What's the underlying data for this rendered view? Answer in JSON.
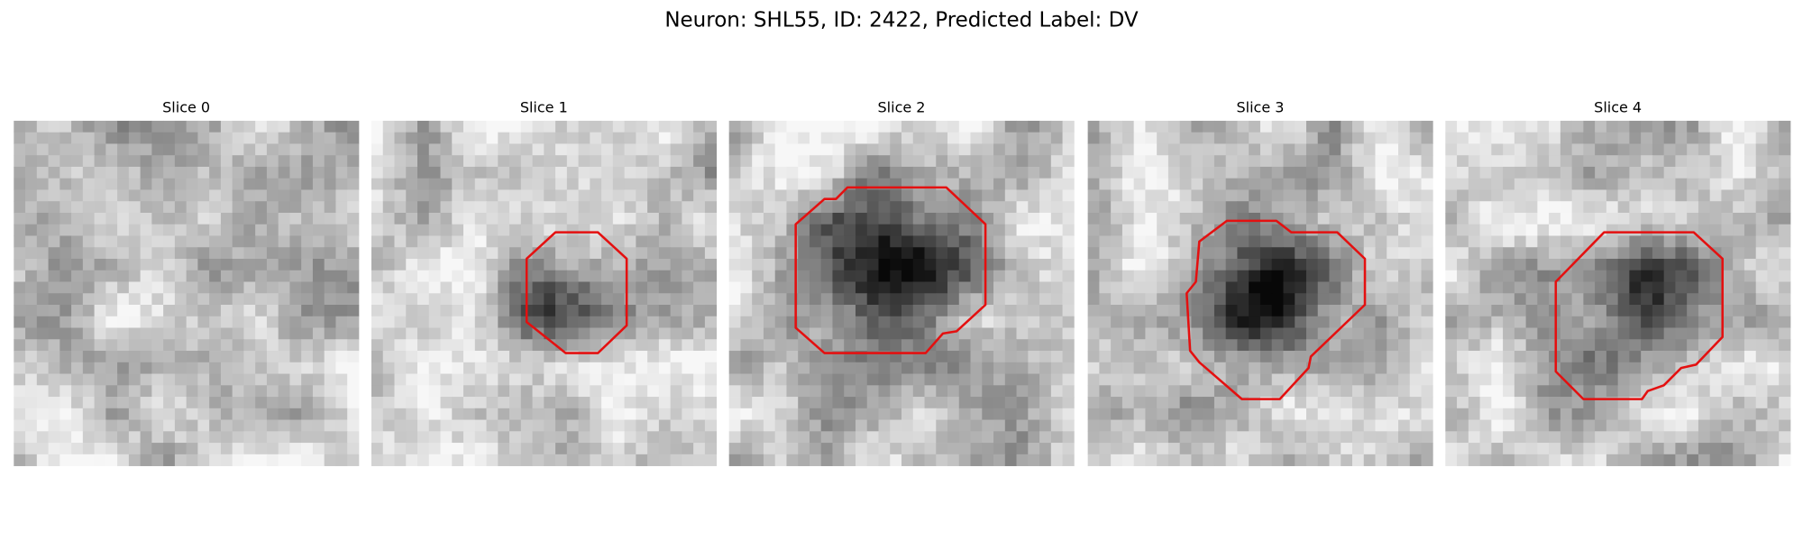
{
  "title": "Neuron: SHL55, ID: 2422, Predicted Label: DV",
  "panels": [
    {
      "title": "Slice 0"
    },
    {
      "title": "Slice 1"
    },
    {
      "title": "Slice 2"
    },
    {
      "title": "Slice 3"
    },
    {
      "title": "Slice 4"
    }
  ]
}
